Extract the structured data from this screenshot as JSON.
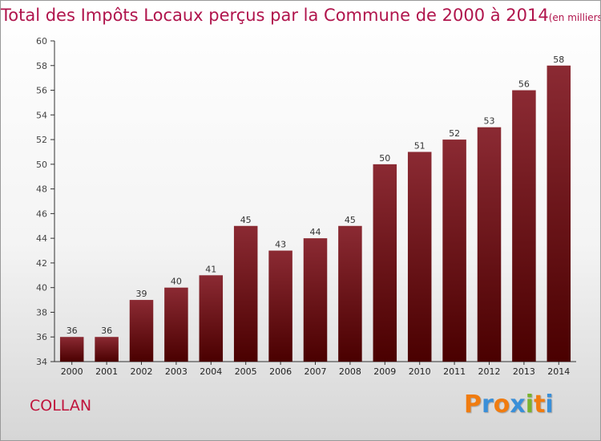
{
  "title": "Total des Impôts Locaux perçus par la Commune de 2000 à 2014",
  "unit": "(en milliers d'€)",
  "commune": "COLLAN",
  "logo": {
    "text": "Proxiti",
    "letters": [
      "P",
      "r",
      "o",
      "x",
      "i",
      "t",
      "i"
    ],
    "colors": [
      "#f07c10",
      "#3a8fd8",
      "#f07c10",
      "#3a8fd8",
      "#7ab32e",
      "#f07c10",
      "#3a8fd8"
    ]
  },
  "colors": {
    "title": "#b0144c",
    "bar_top": "#8b2a33",
    "bar_bottom": "#4a0000",
    "commune": "#c0143c"
  },
  "chart_data": {
    "type": "bar",
    "title": "Total des Impôts Locaux perçus par la Commune de 2000 à 2014",
    "xlabel": "",
    "ylabel": "",
    "categories": [
      "2000",
      "2001",
      "2002",
      "2003",
      "2004",
      "2005",
      "2006",
      "2007",
      "2008",
      "2009",
      "2010",
      "2011",
      "2012",
      "2013",
      "2014"
    ],
    "values": [
      36,
      36,
      39,
      40,
      41,
      45,
      43,
      44,
      45,
      50,
      51,
      52,
      53,
      56,
      58
    ],
    "ylim": [
      34,
      60
    ],
    "yticks": [
      34,
      36,
      38,
      40,
      42,
      44,
      46,
      48,
      50,
      52,
      54,
      56,
      58,
      60
    ],
    "grid": false
  }
}
